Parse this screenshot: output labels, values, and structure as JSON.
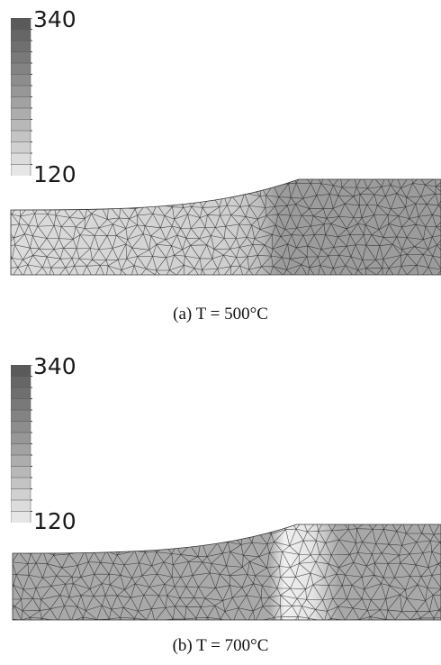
{
  "figure": {
    "legend_max_label": "340",
    "legend_min_label": "120",
    "legend_colors": [
      "#5a5a5a",
      "#666",
      "#6f6f6f",
      "#797979",
      "#838383",
      "#8d8d8d",
      "#979797",
      "#a2a2a2",
      "#adadad",
      "#b8b8b8",
      "#c4c4c4",
      "#d0d0d0",
      "#dcdcdc",
      "#e6e6e6"
    ],
    "panels": [
      {
        "id": "a",
        "caption": "(a)  T = 500°C",
        "colors": {
          "left": "#dcdcdc",
          "mid": "#cfcfcf",
          "right": "#9c9c9c",
          "line": "#222222"
        }
      },
      {
        "id": "b",
        "caption": "(b)  T = 700°C",
        "colors": {
          "left": "#a9a9a9",
          "mid": "#f0f0f0",
          "right": "#a8a8a8",
          "line": "#222222"
        }
      }
    ]
  }
}
